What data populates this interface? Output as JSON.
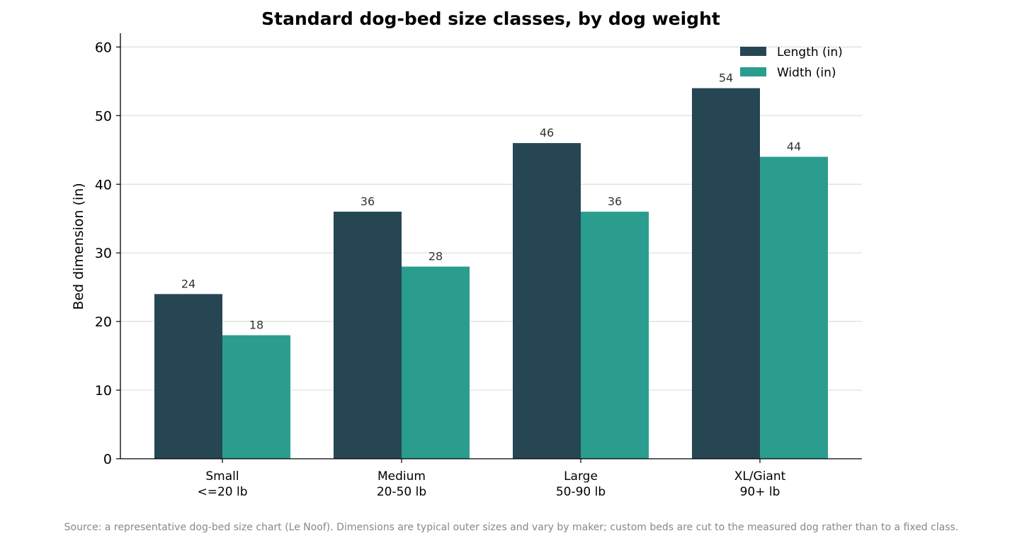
{
  "chart_data": {
    "type": "bar",
    "title": "Standard dog-bed size classes, by dog weight",
    "xlabel": "",
    "ylabel": "Bed dimension (in)",
    "categories": [
      [
        "Small",
        "<=20 lb"
      ],
      [
        "Medium",
        "20-50 lb"
      ],
      [
        "Large",
        "50-90 lb"
      ],
      [
        "XL/Giant",
        "90+ lb"
      ]
    ],
    "series": [
      {
        "name": "Length (in)",
        "color": "#264653",
        "values": [
          24,
          36,
          46,
          54
        ]
      },
      {
        "name": "Width (in)",
        "color": "#2a9d8f",
        "values": [
          18,
          28,
          36,
          44
        ]
      }
    ],
    "ylim": [
      0,
      62
    ],
    "yticks": [
      0,
      10,
      20,
      30,
      40,
      50,
      60
    ],
    "grid": "horizontal",
    "legend_position": "top-right",
    "data_labels": true
  },
  "source_note": "Source: a representative dog-bed size chart (Le Noof). Dimensions are typical outer sizes and vary by maker; custom beds are cut to the measured dog rather than to a fixed class."
}
